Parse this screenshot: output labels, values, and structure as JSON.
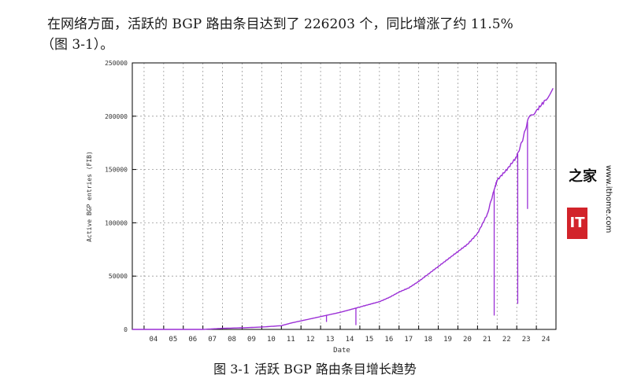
{
  "paragraph": {
    "line1": "在网络方面，活跃的 BGP 路由条目达到了 226203 个，同比增涨了约 11.5%",
    "line2": "（图 3-1）。"
  },
  "caption": "图 3-1 活跃 BGP 路由条目增长趋势",
  "watermark": {
    "badge": "IT",
    "chars": "之家",
    "url": "www.ithome.com"
  },
  "chart_data": {
    "type": "line",
    "xlabel": "Date",
    "ylabel": "Active BGP entries (FIB)",
    "ylim": [
      0,
      250000
    ],
    "xlim": [
      2003.4,
      2025.0
    ],
    "yticks": [
      0,
      50000,
      100000,
      150000,
      200000,
      250000
    ],
    "ytick_labels": [
      "0",
      "50000",
      "100000",
      "150000",
      "200000",
      "250000"
    ],
    "xtick_labels": [
      "04",
      "05",
      "06",
      "07",
      "08",
      "09",
      "10",
      "11",
      "12",
      "13",
      "14",
      "15",
      "16",
      "17",
      "18",
      "19",
      "20",
      "21",
      "22",
      "23",
      "24"
    ],
    "xtick_years": [
      2004,
      2005,
      2006,
      2007,
      2008,
      2009,
      2010,
      2011,
      2012,
      2013,
      2014,
      2015,
      2016,
      2017,
      2018,
      2019,
      2020,
      2021,
      2022,
      2023,
      2024
    ],
    "grid": true,
    "line_color": "#9b2fd6",
    "series": [
      {
        "x": [
          2003.4,
          2007.0,
          2008.0,
          2009.0,
          2010.0,
          2011.0,
          2011.5,
          2012.0,
          2012.5,
          2013.0,
          2013.5,
          2014.0,
          2014.5,
          2015.0,
          2015.5,
          2016.0,
          2016.5,
          2017.0,
          2017.5,
          2018.0,
          2018.5,
          2019.0,
          2019.5,
          2020.0,
          2020.5,
          2021.0,
          2021.5,
          2021.8,
          2022.0,
          2022.5,
          2023.0,
          2023.3,
          2023.6,
          2024.0,
          2024.5,
          2024.85
        ],
        "y": [
          0,
          0,
          1000,
          1500,
          2200,
          3500,
          6000,
          8000,
          10000,
          12000,
          14000,
          16000,
          18500,
          21000,
          23500,
          26000,
          30000,
          35000,
          39000,
          45000,
          52000,
          59000,
          66000,
          73000,
          80000,
          90000,
          108000,
          128000,
          140000,
          150000,
          162000,
          178000,
          198000,
          205000,
          216000,
          226203
        ]
      }
    ],
    "dips": [
      {
        "x": 2013.3,
        "y": 7000
      },
      {
        "x": 2014.8,
        "y": 4000
      },
      {
        "x": 2021.85,
        "y": 13000
      },
      {
        "x": 2023.05,
        "y": 24000
      },
      {
        "x": 2023.55,
        "y": 113000
      }
    ]
  }
}
